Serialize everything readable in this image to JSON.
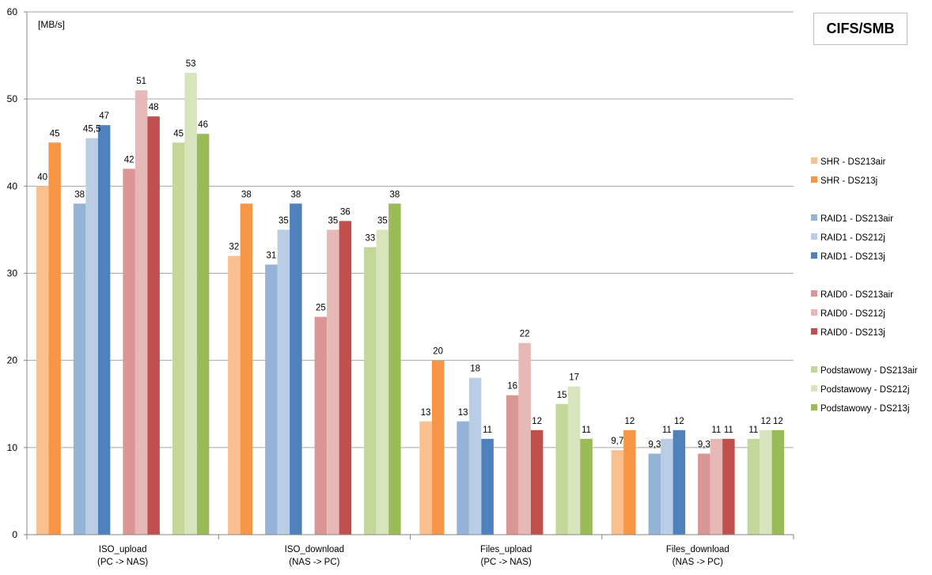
{
  "chart_data": {
    "type": "bar",
    "title": "CIFS/SMB",
    "ylabel": "[MB/s]",
    "xlabel": "",
    "ylim": [
      0,
      60
    ],
    "yticks": [
      0,
      10,
      20,
      30,
      40,
      50,
      60
    ],
    "grid": true,
    "legend_position": "right",
    "categories": [
      {
        "name": "ISO_upload",
        "sub": "(PC -> NAS)"
      },
      {
        "name": "ISO_download",
        "sub": "(NAS -> PC)"
      },
      {
        "name": "Files_upload",
        "sub": "(PC -> NAS)"
      },
      {
        "name": "Files_download",
        "sub": "(NAS -> PC)"
      }
    ],
    "groups": [
      {
        "name": "SHR",
        "series": [
          {
            "name": "SHR - DS213air",
            "color": "#fac090",
            "values": [
              40,
              32,
              13,
              9.7
            ],
            "labels": [
              "40",
              "32",
              "13",
              "9,7"
            ]
          },
          {
            "name": "SHR - DS213j",
            "color": "#f79646",
            "values": [
              45,
              38,
              20,
              12
            ],
            "labels": [
              "45",
              "38",
              "20",
              "12"
            ]
          }
        ]
      },
      {
        "name": "RAID1",
        "series": [
          {
            "name": "RAID1 - DS213air",
            "color": "#95b3d7",
            "values": [
              38,
              31,
              13,
              9.3
            ],
            "labels": [
              "38",
              "31",
              "13",
              "9,3"
            ]
          },
          {
            "name": "RAID1 - DS212j",
            "color": "#b9cde5",
            "values": [
              45.5,
              35,
              18,
              11
            ],
            "labels": [
              "45,5",
              "35",
              "18",
              "11"
            ]
          },
          {
            "name": "RAID1 - DS213j",
            "color": "#4f81bd",
            "values": [
              47,
              38,
              11,
              12
            ],
            "labels": [
              "47",
              "38",
              "11",
              "12"
            ]
          }
        ]
      },
      {
        "name": "RAID0",
        "series": [
          {
            "name": "RAID0 - DS213air",
            "color": "#da9694",
            "values": [
              42,
              25,
              16,
              9.3
            ],
            "labels": [
              "42",
              "25",
              "16",
              "9,3"
            ]
          },
          {
            "name": "RAID0 - DS212j",
            "color": "#e6b9b8",
            "values": [
              51,
              35,
              22,
              11
            ],
            "labels": [
              "51",
              "35",
              "22",
              "11"
            ]
          },
          {
            "name": "RAID0 - DS213j",
            "color": "#c0504d",
            "values": [
              48,
              36,
              12,
              11
            ],
            "labels": [
              "48",
              "36",
              "12",
              "11"
            ]
          }
        ]
      },
      {
        "name": "Podstawowy",
        "series": [
          {
            "name": "Podstawowy - DS213air",
            "color": "#c4d79b",
            "values": [
              45,
              33,
              15,
              11
            ],
            "labels": [
              "45",
              "33",
              "15",
              "11"
            ]
          },
          {
            "name": "Podstawowy - DS212j",
            "color": "#d8e4bc",
            "values": [
              53,
              35,
              17,
              12
            ],
            "labels": [
              "53",
              "35",
              "17",
              "12"
            ]
          },
          {
            "name": "Podstawowy - DS213j",
            "color": "#9bbb59",
            "values": [
              46,
              38,
              11,
              12
            ],
            "labels": [
              "46",
              "38",
              "11",
              "12"
            ]
          }
        ]
      }
    ]
  }
}
